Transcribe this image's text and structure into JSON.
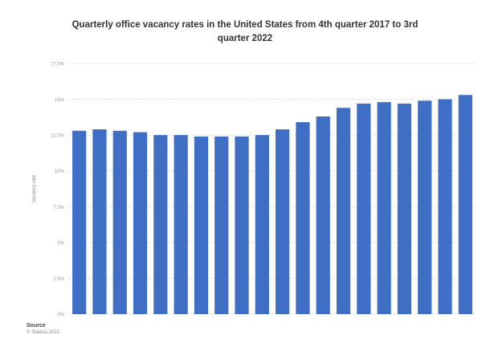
{
  "chart_data": {
    "type": "bar",
    "title": "Quarterly office vacancy rates in the United States from 4th quarter 2017 to 3rd quarter 2022",
    "xlabel": "",
    "ylabel": "Vacancy rate",
    "categories": [
      "",
      "",
      "",
      "",
      "",
      "",
      "",
      "",
      "",
      "",
      "",
      "",
      "",
      "",
      "",
      "",
      "",
      "",
      "",
      ""
    ],
    "series": [
      {
        "values": [
          12.8,
          12.9,
          12.8,
          12.7,
          12.5,
          12.5,
          12.4,
          12.4,
          12.4,
          12.5,
          12.9,
          13.4,
          13.8,
          14.4,
          14.7,
          14.8,
          14.7,
          14.9,
          15.0,
          15.3
        ]
      }
    ],
    "ylim": [
      0,
      17.5
    ],
    "yticks": [
      "0%",
      "2.5%",
      "5%",
      "7.5%",
      "10%",
      "12.5%",
      "15%",
      "17.5%"
    ],
    "grid": true,
    "legend": "none",
    "colors": {
      "bar": "#3f6fc4",
      "grid": "#d8d8d8",
      "axis_text": "#999999"
    }
  },
  "source": {
    "label": "Source",
    "text": "© Statista 2022"
  }
}
